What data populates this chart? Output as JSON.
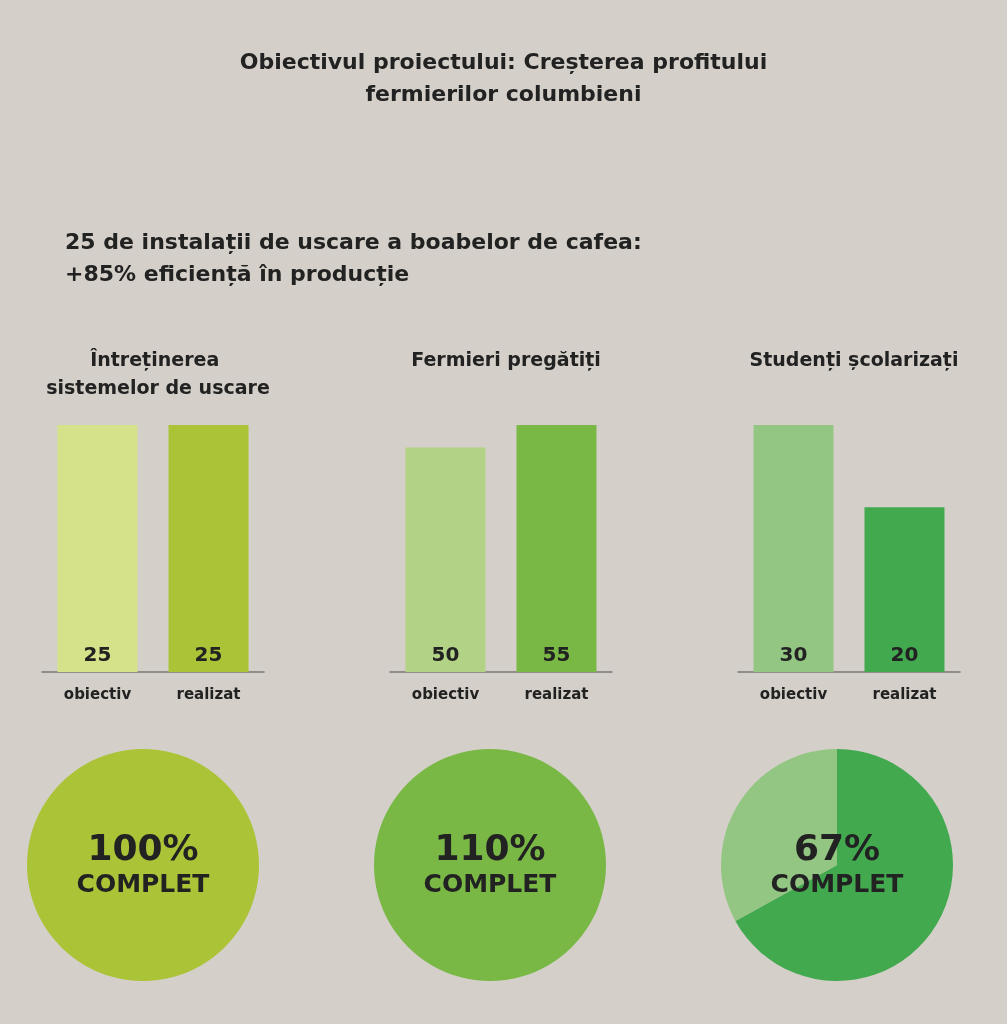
{
  "chart_data": [
    {
      "type": "other",
      "title": "Obiectivul proiectului: Creșterea profitului fermierilor columbieni",
      "subtitle": "25 de instalații de uscare a boabelor de cafea: +85% eficiență în producție"
    },
    {
      "type": "bar",
      "title": "Întreținerea sistemelor de uscare",
      "categories": [
        "obiectiv",
        "realizat"
      ],
      "values": [
        25,
        25
      ],
      "colors": [
        "#d6e28a",
        "#abc437"
      ],
      "data_labels": true
    },
    {
      "type": "bar",
      "title": "Fermieri pregătiți",
      "categories": [
        "obiectiv",
        "realizat"
      ],
      "values": [
        50,
        55
      ],
      "colors": [
        "#b2d286",
        "#7ab846"
      ],
      "data_labels": true
    },
    {
      "type": "bar",
      "title": "Studenți școlarizați",
      "categories": [
        "obiectiv",
        "realizat"
      ],
      "values": [
        30,
        20
      ],
      "colors": [
        "#93c683",
        "#42a94f"
      ],
      "data_labels": true
    },
    {
      "type": "pie",
      "categories": [
        null
      ],
      "values": [
        100
      ],
      "colors": [
        "#abc437"
      ],
      "annotations": [
        "100%",
        "COMPLET"
      ]
    },
    {
      "type": "pie",
      "categories": [
        null
      ],
      "values": [
        100
      ],
      "colors": [
        "#7ab846"
      ],
      "annotations": [
        "110%",
        "COMPLET"
      ]
    },
    {
      "type": "pie",
      "categories": [
        null,
        null
      ],
      "values": [
        67,
        33
      ],
      "colors": [
        "#42a94f",
        "#93c683"
      ],
      "annotations": [
        "67%",
        "COMPLET"
      ]
    }
  ]
}
